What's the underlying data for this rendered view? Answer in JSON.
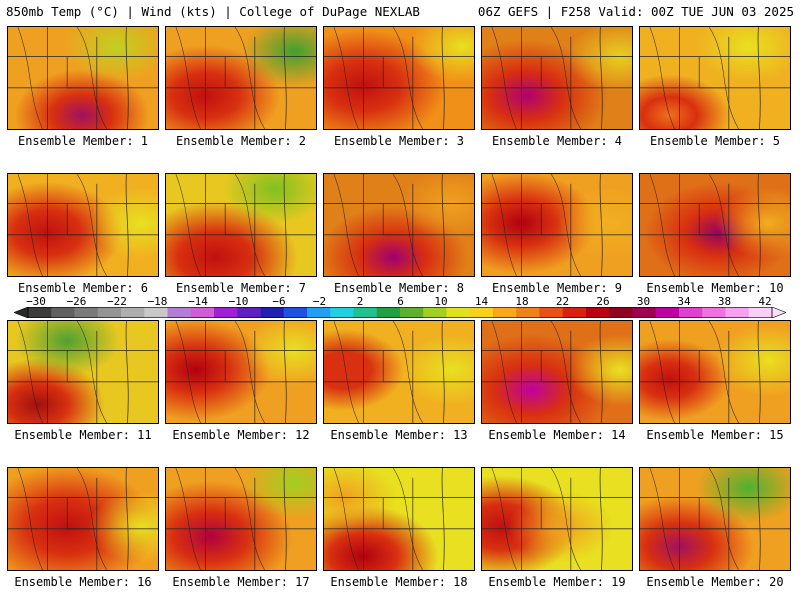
{
  "header": {
    "left": "850mb Temp (°C) | Wind (kts) | College of DuPage NEXLAB",
    "right": "06Z GEFS | F258 Valid: 00Z TUE JUN 03 2025"
  },
  "panels": [
    {
      "label": "Ensemble Member: 1"
    },
    {
      "label": "Ensemble Member: 2"
    },
    {
      "label": "Ensemble Member: 3"
    },
    {
      "label": "Ensemble Member: 4"
    },
    {
      "label": "Ensemble Member: 5"
    },
    {
      "label": "Ensemble Member: 6"
    },
    {
      "label": "Ensemble Member: 7"
    },
    {
      "label": "Ensemble Member: 8"
    },
    {
      "label": "Ensemble Member: 9"
    },
    {
      "label": "Ensemble Member: 10"
    },
    {
      "label": "Ensemble Member: 11"
    },
    {
      "label": "Ensemble Member: 12"
    },
    {
      "label": "Ensemble Member: 13"
    },
    {
      "label": "Ensemble Member: 14"
    },
    {
      "label": "Ensemble Member: 15"
    },
    {
      "label": "Ensemble Member: 16"
    },
    {
      "label": "Ensemble Member: 17"
    },
    {
      "label": "Ensemble Member: 18"
    },
    {
      "label": "Ensemble Member: 19"
    },
    {
      "label": "Ensemble Member: 20"
    }
  ],
  "colorbar": {
    "ticks": [
      "−30",
      "−26",
      "−22",
      "−18",
      "−14",
      "−10",
      "−6",
      "−2",
      "2",
      "6",
      "10",
      "14",
      "18",
      "22",
      "26",
      "30",
      "34",
      "38",
      "42"
    ],
    "colors": [
      "#3c3c3c",
      "#606060",
      "#7a7a7a",
      "#949494",
      "#aeaeae",
      "#c8c8c8",
      "#b37fd6",
      "#d05cd6",
      "#a020d8",
      "#6020c0",
      "#2020b0",
      "#2050e0",
      "#20a0f0",
      "#20d0e0",
      "#20c090",
      "#20a040",
      "#60b030",
      "#a0d020",
      "#e0e020",
      "#f8d020",
      "#f8a818",
      "#f08018",
      "#e85018",
      "#d82010",
      "#b80010",
      "#900020",
      "#a00050",
      "#c000a0",
      "#e040d0",
      "#f070e0",
      "#f8a0f0",
      "#f8d0f8"
    ]
  }
}
